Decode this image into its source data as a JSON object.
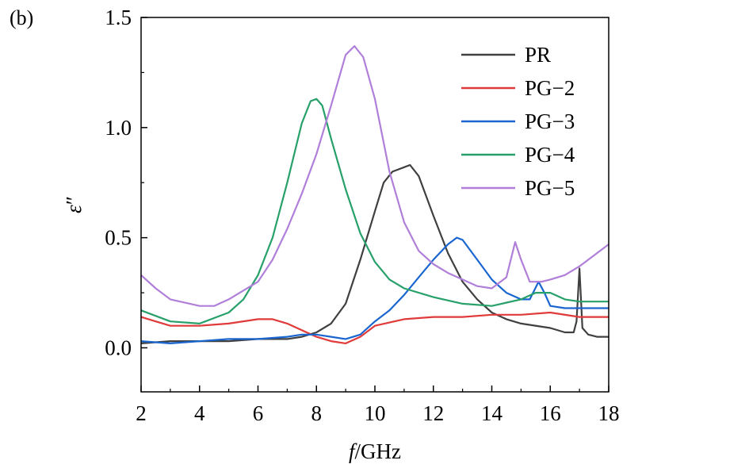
{
  "panel_label": "(b)",
  "chart_data": {
    "type": "line",
    "xlabel_italic": "f",
    "xlabel_rest": "/GHz",
    "ylabel_symbol": "ε",
    "ylabel_mark": "″",
    "xlim": [
      2,
      18
    ],
    "ylim": [
      -0.2,
      1.5
    ],
    "xticks": [
      2,
      4,
      6,
      8,
      10,
      12,
      14,
      16,
      18
    ],
    "xtick_labels": [
      "2",
      "4",
      "6",
      "8",
      "10",
      "12",
      "14",
      "16",
      "18"
    ],
    "yticks": [
      0.0,
      0.5,
      1.0,
      1.5
    ],
    "ytick_labels": [
      "0.0",
      "0.5",
      "1.0",
      "1.5"
    ],
    "grid": false,
    "legend_position": "top-right",
    "series": [
      {
        "name": "PR",
        "color": "#404040",
        "x": [
          2,
          3,
          4,
          5,
          6,
          7,
          7.5,
          8,
          8.5,
          9,
          9.5,
          10,
          10.3,
          10.6,
          11,
          11.2,
          11.5,
          12,
          12.5,
          13,
          13.5,
          14,
          14.5,
          15,
          16,
          16.5,
          16.8,
          16.9,
          17.0,
          17.1,
          17.3,
          17.6,
          18
        ],
        "y": [
          0.02,
          0.03,
          0.03,
          0.03,
          0.04,
          0.04,
          0.05,
          0.07,
          0.11,
          0.2,
          0.4,
          0.62,
          0.75,
          0.8,
          0.82,
          0.83,
          0.78,
          0.6,
          0.43,
          0.3,
          0.22,
          0.16,
          0.13,
          0.11,
          0.09,
          0.07,
          0.07,
          0.12,
          0.36,
          0.09,
          0.06,
          0.05,
          0.05
        ]
      },
      {
        "name": "PG−2",
        "color": "#e03a3a",
        "x": [
          2,
          2.5,
          3,
          4,
          5,
          6,
          6.5,
          7,
          7.5,
          8,
          8.5,
          9,
          9.5,
          10,
          11,
          12,
          13,
          14,
          15,
          16,
          17,
          18
        ],
        "y": [
          0.14,
          0.12,
          0.1,
          0.1,
          0.11,
          0.13,
          0.13,
          0.11,
          0.08,
          0.05,
          0.03,
          0.02,
          0.05,
          0.1,
          0.13,
          0.14,
          0.14,
          0.15,
          0.15,
          0.16,
          0.14,
          0.14
        ]
      },
      {
        "name": "PG−3",
        "color": "#1a66d0",
        "x": [
          2,
          3,
          4,
          5,
          6,
          7,
          7.5,
          8,
          8.5,
          9,
          9.5,
          10,
          10.5,
          11,
          11.5,
          12,
          12.5,
          12.8,
          13,
          13.5,
          14,
          14.5,
          15,
          15.3,
          15.6,
          15.8,
          16,
          16.5,
          17,
          18
        ],
        "y": [
          0.03,
          0.02,
          0.03,
          0.04,
          0.04,
          0.05,
          0.06,
          0.06,
          0.05,
          0.04,
          0.06,
          0.12,
          0.17,
          0.24,
          0.32,
          0.4,
          0.47,
          0.5,
          0.49,
          0.4,
          0.31,
          0.25,
          0.22,
          0.22,
          0.3,
          0.25,
          0.19,
          0.18,
          0.18,
          0.18
        ]
      },
      {
        "name": "PG−4",
        "color": "#27a06a",
        "x": [
          2,
          3,
          4,
          5,
          5.5,
          6,
          6.5,
          7,
          7.5,
          7.8,
          8,
          8.2,
          8.5,
          9,
          9.5,
          10,
          10.5,
          11,
          12,
          13,
          14,
          15,
          15.5,
          16,
          16.5,
          17,
          18
        ],
        "y": [
          0.17,
          0.12,
          0.11,
          0.16,
          0.22,
          0.33,
          0.5,
          0.75,
          1.02,
          1.12,
          1.13,
          1.1,
          0.95,
          0.72,
          0.52,
          0.39,
          0.31,
          0.27,
          0.23,
          0.2,
          0.19,
          0.22,
          0.25,
          0.25,
          0.22,
          0.21,
          0.21
        ]
      },
      {
        "name": "PG−5",
        "color": "#b07fda",
        "x": [
          2,
          2.5,
          3,
          4,
          4.5,
          5,
          6,
          6.5,
          7,
          7.5,
          8,
          8.5,
          9,
          9.3,
          9.6,
          10,
          10.5,
          11,
          11.5,
          12,
          12.5,
          13,
          13.5,
          14,
          14.5,
          14.8,
          15,
          15.3,
          15.7,
          16,
          16.5,
          17,
          17.5,
          18
        ],
        "y": [
          0.33,
          0.27,
          0.22,
          0.19,
          0.19,
          0.22,
          0.3,
          0.4,
          0.54,
          0.7,
          0.88,
          1.1,
          1.33,
          1.37,
          1.32,
          1.13,
          0.8,
          0.57,
          0.44,
          0.38,
          0.34,
          0.31,
          0.28,
          0.27,
          0.32,
          0.48,
          0.4,
          0.3,
          0.3,
          0.31,
          0.33,
          0.37,
          0.42,
          0.47
        ]
      }
    ]
  }
}
